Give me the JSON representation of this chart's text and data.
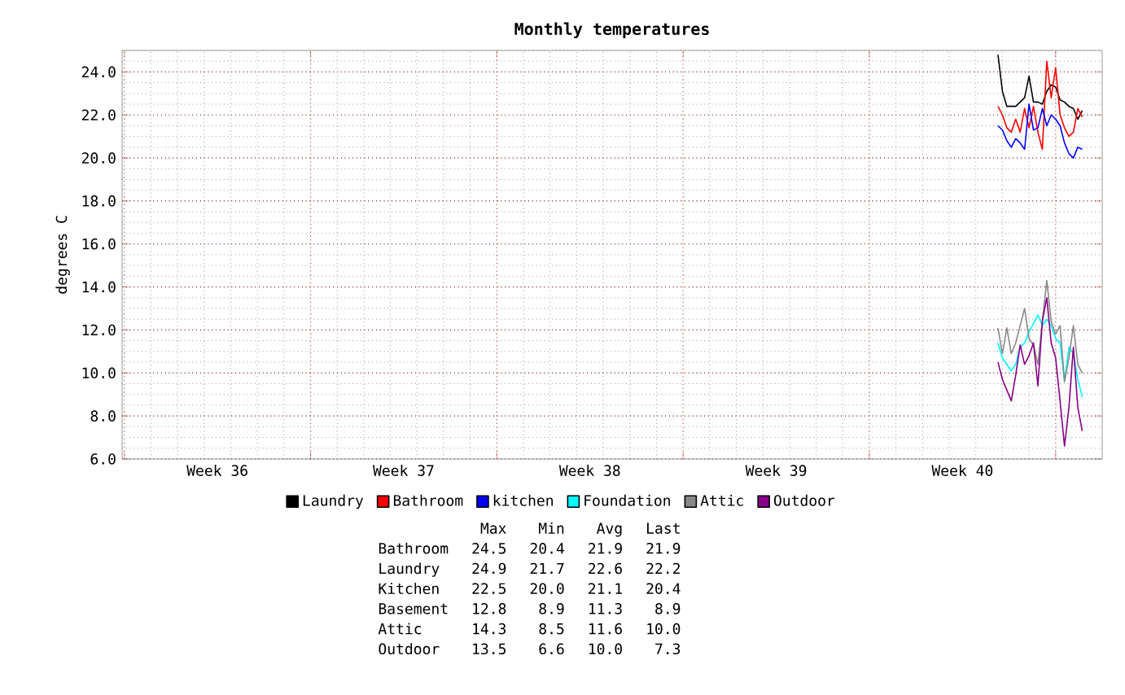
{
  "chart_data": {
    "type": "line",
    "title": "Monthly temperatures",
    "ylabel": "degrees C",
    "categories": [
      null,
      null,
      null,
      null,
      null,
      null,
      null,
      null,
      null,
      null,
      null,
      null,
      null,
      null,
      null,
      null,
      null,
      null,
      null,
      null,
      null,
      "Week 36",
      null,
      null,
      null,
      null,
      null,
      null,
      null,
      null,
      null,
      null,
      null,
      null,
      null,
      null,
      null,
      null,
      null,
      null,
      null,
      null,
      null,
      null,
      null,
      null,
      null,
      null,
      null,
      null,
      null,
      null,
      null,
      null,
      null,
      null,
      null,
      null,
      null,
      null,
      null,
      null,
      null,
      "Week 37",
      null,
      null,
      null,
      null,
      null,
      null,
      null,
      null,
      null,
      null,
      null,
      null,
      null,
      null,
      null,
      null,
      null,
      null,
      null,
      null,
      null,
      null,
      null,
      null,
      null,
      null,
      null,
      null,
      null,
      null,
      null,
      null,
      null,
      null,
      null,
      null,
      null,
      null,
      null,
      null,
      null,
      "Week 38",
      null,
      null,
      null,
      null,
      null,
      null,
      null,
      null,
      null,
      null,
      null,
      null,
      null,
      null,
      null,
      null,
      null,
      null,
      null,
      null,
      null,
      null,
      null,
      null,
      null,
      null,
      null,
      null,
      null,
      null,
      null,
      null,
      null,
      null,
      null,
      null,
      null,
      null,
      null,
      null,
      null,
      "Week 39",
      null,
      null,
      null,
      null,
      null,
      null,
      null,
      null,
      null,
      null,
      null,
      null,
      null,
      null,
      null,
      null,
      null,
      null,
      null,
      null,
      null,
      null,
      null,
      null,
      null,
      null,
      null,
      null,
      null,
      null,
      null,
      null,
      null,
      null,
      null,
      null,
      null,
      null,
      null,
      null,
      null,
      "Week 40",
      null,
      null,
      null,
      null,
      null,
      null,
      null,
      null,
      null,
      null,
      null,
      null,
      null,
      null,
      null,
      null,
      null,
      null,
      null,
      null,
      null,
      null,
      null,
      null,
      null,
      null,
      null,
      null,
      null,
      null,
      null
    ],
    "ylim": [
      6,
      25
    ],
    "yticks": [
      {
        "value": 6,
        "label": "6.0"
      },
      {
        "value": 8,
        "label": "8.0"
      },
      {
        "value": 10,
        "label": "10.0"
      },
      {
        "value": 12,
        "label": "12.0"
      },
      {
        "value": 14,
        "label": "14.0"
      },
      {
        "value": 16,
        "label": "16.0"
      },
      {
        "value": 18,
        "label": "18.0"
      },
      {
        "value": 20,
        "label": "20.0"
      },
      {
        "value": 22,
        "label": "22.0"
      },
      {
        "value": 24,
        "label": "24.0"
      }
    ],
    "grid": true,
    "legend": "bottom",
    "series": [
      {
        "name": "Laundry",
        "color": "#000000",
        "values": [
          null,
          null,
          null,
          null,
          null,
          null,
          null,
          null,
          null,
          null,
          null,
          null,
          null,
          null,
          null,
          null,
          null,
          null,
          null,
          null,
          null,
          null,
          null,
          null,
          null,
          null,
          null,
          null,
          null,
          null,
          null,
          null,
          null,
          null,
          null,
          null,
          null,
          null,
          null,
          null,
          null,
          null,
          null,
          null,
          null,
          null,
          null,
          null,
          null,
          null,
          null,
          null,
          null,
          null,
          null,
          null,
          null,
          null,
          null,
          null,
          null,
          null,
          null,
          null,
          null,
          null,
          null,
          null,
          null,
          null,
          null,
          null,
          null,
          null,
          null,
          null,
          null,
          null,
          null,
          null,
          null,
          null,
          null,
          null,
          null,
          null,
          null,
          null,
          null,
          null,
          null,
          null,
          null,
          null,
          null,
          null,
          null,
          null,
          null,
          null,
          null,
          null,
          null,
          null,
          null,
          null,
          null,
          null,
          null,
          null,
          null,
          null,
          null,
          null,
          null,
          null,
          null,
          null,
          null,
          null,
          null,
          null,
          null,
          null,
          null,
          null,
          null,
          null,
          null,
          null,
          null,
          null,
          null,
          null,
          null,
          null,
          null,
          null,
          null,
          null,
          null,
          null,
          null,
          null,
          null,
          null,
          null,
          null,
          null,
          null,
          null,
          null,
          null,
          null,
          null,
          null,
          null,
          null,
          null,
          null,
          null,
          null,
          null,
          null,
          null,
          null,
          null,
          null,
          null,
          null,
          null,
          null,
          null,
          null,
          null,
          null,
          null,
          null,
          null,
          null,
          null,
          null,
          null,
          null,
          null,
          null,
          null,
          null,
          null,
          null,
          null,
          null,
          null,
          null,
          null,
          null,
          null,
          24.8,
          23.1,
          22.4,
          22.4,
          22.4,
          22.6,
          22.8,
          23.8,
          22.6,
          22.6,
          22.5,
          23.1,
          23.4,
          23.3,
          22.7,
          22.6,
          22.4,
          22.3,
          21.8,
          22.2,
          null,
          null,
          null,
          null
        ]
      },
      {
        "name": "Bathroom",
        "color": "#ff0000",
        "values": [
          null,
          null,
          null,
          null,
          null,
          null,
          null,
          null,
          null,
          null,
          null,
          null,
          null,
          null,
          null,
          null,
          null,
          null,
          null,
          null,
          null,
          null,
          null,
          null,
          null,
          null,
          null,
          null,
          null,
          null,
          null,
          null,
          null,
          null,
          null,
          null,
          null,
          null,
          null,
          null,
          null,
          null,
          null,
          null,
          null,
          null,
          null,
          null,
          null,
          null,
          null,
          null,
          null,
          null,
          null,
          null,
          null,
          null,
          null,
          null,
          null,
          null,
          null,
          null,
          null,
          null,
          null,
          null,
          null,
          null,
          null,
          null,
          null,
          null,
          null,
          null,
          null,
          null,
          null,
          null,
          null,
          null,
          null,
          null,
          null,
          null,
          null,
          null,
          null,
          null,
          null,
          null,
          null,
          null,
          null,
          null,
          null,
          null,
          null,
          null,
          null,
          null,
          null,
          null,
          null,
          null,
          null,
          null,
          null,
          null,
          null,
          null,
          null,
          null,
          null,
          null,
          null,
          null,
          null,
          null,
          null,
          null,
          null,
          null,
          null,
          null,
          null,
          null,
          null,
          null,
          null,
          null,
          null,
          null,
          null,
          null,
          null,
          null,
          null,
          null,
          null,
          null,
          null,
          null,
          null,
          null,
          null,
          null,
          null,
          null,
          null,
          null,
          null,
          null,
          null,
          null,
          null,
          null,
          null,
          null,
          null,
          null,
          null,
          null,
          null,
          null,
          null,
          null,
          null,
          null,
          null,
          null,
          null,
          null,
          null,
          null,
          null,
          null,
          null,
          null,
          null,
          null,
          null,
          null,
          null,
          null,
          null,
          null,
          null,
          null,
          null,
          null,
          null,
          null,
          null,
          null,
          null,
          22.4,
          22.0,
          21.4,
          21.2,
          21.8,
          21.2,
          22.3,
          21.4,
          22.4,
          21.2,
          20.4,
          24.5,
          22.8,
          24.2,
          22.0,
          21.4,
          21.0,
          21.2,
          22.3,
          21.9,
          null,
          null,
          null,
          null
        ]
      },
      {
        "name": "kitchen",
        "color": "#0000ff",
        "values": [
          null,
          null,
          null,
          null,
          null,
          null,
          null,
          null,
          null,
          null,
          null,
          null,
          null,
          null,
          null,
          null,
          null,
          null,
          null,
          null,
          null,
          null,
          null,
          null,
          null,
          null,
          null,
          null,
          null,
          null,
          null,
          null,
          null,
          null,
          null,
          null,
          null,
          null,
          null,
          null,
          null,
          null,
          null,
          null,
          null,
          null,
          null,
          null,
          null,
          null,
          null,
          null,
          null,
          null,
          null,
          null,
          null,
          null,
          null,
          null,
          null,
          null,
          null,
          null,
          null,
          null,
          null,
          null,
          null,
          null,
          null,
          null,
          null,
          null,
          null,
          null,
          null,
          null,
          null,
          null,
          null,
          null,
          null,
          null,
          null,
          null,
          null,
          null,
          null,
          null,
          null,
          null,
          null,
          null,
          null,
          null,
          null,
          null,
          null,
          null,
          null,
          null,
          null,
          null,
          null,
          null,
          null,
          null,
          null,
          null,
          null,
          null,
          null,
          null,
          null,
          null,
          null,
          null,
          null,
          null,
          null,
          null,
          null,
          null,
          null,
          null,
          null,
          null,
          null,
          null,
          null,
          null,
          null,
          null,
          null,
          null,
          null,
          null,
          null,
          null,
          null,
          null,
          null,
          null,
          null,
          null,
          null,
          null,
          null,
          null,
          null,
          null,
          null,
          null,
          null,
          null,
          null,
          null,
          null,
          null,
          null,
          null,
          null,
          null,
          null,
          null,
          null,
          null,
          null,
          null,
          null,
          null,
          null,
          null,
          null,
          null,
          null,
          null,
          null,
          null,
          null,
          null,
          null,
          null,
          null,
          null,
          null,
          null,
          null,
          null,
          null,
          null,
          null,
          null,
          null,
          null,
          null,
          21.5,
          21.3,
          20.8,
          20.5,
          20.9,
          20.7,
          20.4,
          22.5,
          21.3,
          21.4,
          22.3,
          21.5,
          22.0,
          21.8,
          21.5,
          20.7,
          20.2,
          20.0,
          20.5,
          20.4,
          null,
          null,
          null,
          null
        ]
      },
      {
        "name": "Foundation",
        "color": "#00ffff",
        "values": [
          null,
          null,
          null,
          null,
          null,
          null,
          null,
          null,
          null,
          null,
          null,
          null,
          null,
          null,
          null,
          null,
          null,
          null,
          null,
          null,
          null,
          null,
          null,
          null,
          null,
          null,
          null,
          null,
          null,
          null,
          null,
          null,
          null,
          null,
          null,
          null,
          null,
          null,
          null,
          null,
          null,
          null,
          null,
          null,
          null,
          null,
          null,
          null,
          null,
          null,
          null,
          null,
          null,
          null,
          null,
          null,
          null,
          null,
          null,
          null,
          null,
          null,
          null,
          null,
          null,
          null,
          null,
          null,
          null,
          null,
          null,
          null,
          null,
          null,
          null,
          null,
          null,
          null,
          null,
          null,
          null,
          null,
          null,
          null,
          null,
          null,
          null,
          null,
          null,
          null,
          null,
          null,
          null,
          null,
          null,
          null,
          null,
          null,
          null,
          null,
          null,
          null,
          null,
          null,
          null,
          null,
          null,
          null,
          null,
          null,
          null,
          null,
          null,
          null,
          null,
          null,
          null,
          null,
          null,
          null,
          null,
          null,
          null,
          null,
          null,
          null,
          null,
          null,
          null,
          null,
          null,
          null,
          null,
          null,
          null,
          null,
          null,
          null,
          null,
          null,
          null,
          null,
          null,
          null,
          null,
          null,
          null,
          null,
          null,
          null,
          null,
          null,
          null,
          null,
          null,
          null,
          null,
          null,
          null,
          null,
          null,
          null,
          null,
          null,
          null,
          null,
          null,
          null,
          null,
          null,
          null,
          null,
          null,
          null,
          null,
          null,
          null,
          null,
          null,
          null,
          null,
          null,
          null,
          null,
          null,
          null,
          null,
          null,
          null,
          null,
          null,
          null,
          null,
          null,
          null,
          null,
          null,
          11.4,
          10.7,
          10.4,
          10.1,
          10.4,
          11.2,
          11.4,
          11.9,
          12.3,
          12.7,
          12.2,
          12.5,
          12.2,
          11.6,
          11.4,
          9.6,
          11.2,
          10.9,
          9.7,
          8.9,
          null,
          null,
          null,
          null
        ]
      },
      {
        "name": "Attic",
        "color": "#888888",
        "values": [
          null,
          null,
          null,
          null,
          null,
          null,
          null,
          null,
          null,
          null,
          null,
          null,
          null,
          null,
          null,
          null,
          null,
          null,
          null,
          null,
          null,
          null,
          null,
          null,
          null,
          null,
          null,
          null,
          null,
          null,
          null,
          null,
          null,
          null,
          null,
          null,
          null,
          null,
          null,
          null,
          null,
          null,
          null,
          null,
          null,
          null,
          null,
          null,
          null,
          null,
          null,
          null,
          null,
          null,
          null,
          null,
          null,
          null,
          null,
          null,
          null,
          null,
          null,
          null,
          null,
          null,
          null,
          null,
          null,
          null,
          null,
          null,
          null,
          null,
          null,
          null,
          null,
          null,
          null,
          null,
          null,
          null,
          null,
          null,
          null,
          null,
          null,
          null,
          null,
          null,
          null,
          null,
          null,
          null,
          null,
          null,
          null,
          null,
          null,
          null,
          null,
          null,
          null,
          null,
          null,
          null,
          null,
          null,
          null,
          null,
          null,
          null,
          null,
          null,
          null,
          null,
          null,
          null,
          null,
          null,
          null,
          null,
          null,
          null,
          null,
          null,
          null,
          null,
          null,
          null,
          null,
          null,
          null,
          null,
          null,
          null,
          null,
          null,
          null,
          null,
          null,
          null,
          null,
          null,
          null,
          null,
          null,
          null,
          null,
          null,
          null,
          null,
          null,
          null,
          null,
          null,
          null,
          null,
          null,
          null,
          null,
          null,
          null,
          null,
          null,
          null,
          null,
          null,
          null,
          null,
          null,
          null,
          null,
          null,
          null,
          null,
          null,
          null,
          null,
          null,
          null,
          null,
          null,
          null,
          null,
          null,
          null,
          null,
          null,
          null,
          null,
          null,
          null,
          null,
          null,
          null,
          null,
          12.1,
          10.9,
          12.1,
          10.9,
          11.4,
          12.2,
          13.0,
          11.6,
          11.3,
          10.4,
          12.4,
          14.3,
          12.4,
          11.8,
          12.2,
          9.6,
          10.7,
          12.2,
          10.4,
          10.0,
          null,
          null,
          null,
          null
        ]
      },
      {
        "name": "Outdoor",
        "color": "#880088",
        "values": [
          null,
          null,
          null,
          null,
          null,
          null,
          null,
          null,
          null,
          null,
          null,
          null,
          null,
          null,
          null,
          null,
          null,
          null,
          null,
          null,
          null,
          null,
          null,
          null,
          null,
          null,
          null,
          null,
          null,
          null,
          null,
          null,
          null,
          null,
          null,
          null,
          null,
          null,
          null,
          null,
          null,
          null,
          null,
          null,
          null,
          null,
          null,
          null,
          null,
          null,
          null,
          null,
          null,
          null,
          null,
          null,
          null,
          null,
          null,
          null,
          null,
          null,
          null,
          null,
          null,
          null,
          null,
          null,
          null,
          null,
          null,
          null,
          null,
          null,
          null,
          null,
          null,
          null,
          null,
          null,
          null,
          null,
          null,
          null,
          null,
          null,
          null,
          null,
          null,
          null,
          null,
          null,
          null,
          null,
          null,
          null,
          null,
          null,
          null,
          null,
          null,
          null,
          null,
          null,
          null,
          null,
          null,
          null,
          null,
          null,
          null,
          null,
          null,
          null,
          null,
          null,
          null,
          null,
          null,
          null,
          null,
          null,
          null,
          null,
          null,
          null,
          null,
          null,
          null,
          null,
          null,
          null,
          null,
          null,
          null,
          null,
          null,
          null,
          null,
          null,
          null,
          null,
          null,
          null,
          null,
          null,
          null,
          null,
          null,
          null,
          null,
          null,
          null,
          null,
          null,
          null,
          null,
          null,
          null,
          null,
          null,
          null,
          null,
          null,
          null,
          null,
          null,
          null,
          null,
          null,
          null,
          null,
          null,
          null,
          null,
          null,
          null,
          null,
          null,
          null,
          null,
          null,
          null,
          null,
          null,
          null,
          null,
          null,
          null,
          null,
          null,
          null,
          null,
          null,
          null,
          null,
          null,
          10.5,
          9.7,
          9.2,
          8.7,
          9.9,
          11.3,
          10.4,
          10.8,
          11.4,
          9.4,
          12.4,
          13.5,
          11.4,
          10.7,
          8.7,
          6.6,
          8.4,
          11.2,
          8.4,
          7.3,
          null,
          null,
          null,
          null
        ]
      }
    ],
    "annotations": [
      "Max",
      "Min",
      "Avg",
      "Last",
      "Bathroom",
      "24.5",
      "20.4",
      "21.9",
      "21.9",
      "Laundry",
      "24.9",
      "21.7",
      "22.6",
      "22.2",
      "Kitchen",
      "22.5",
      "20.0",
      "21.1",
      "20.4",
      "Basement",
      "12.8",
      "8.9",
      "11.3",
      "8.9",
      "Attic",
      "14.3",
      "8.5",
      "11.6",
      "10.0",
      "Outdoor",
      "13.5",
      "6.6",
      "10.0",
      "7.3"
    ]
  }
}
